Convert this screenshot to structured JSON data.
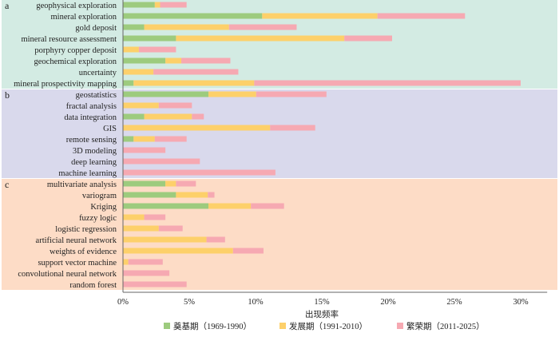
{
  "chart_data": {
    "type": "bar",
    "orientation": "horizontal-stacked",
    "xlabel": "出现频率",
    "xlim": [
      0,
      32
    ],
    "xticks": [
      "0%",
      "5%",
      "10%",
      "15%",
      "20%",
      "25%",
      "30%"
    ],
    "xtick_values": [
      0,
      5,
      10,
      15,
      20,
      25,
      30
    ],
    "legend_position": "bottom",
    "series": [
      {
        "name": "奠基期（1969-1990）",
        "color": "#9dcb7e"
      },
      {
        "name": "发展期（1991-2010）",
        "color": "#fdd06a"
      },
      {
        "name": "繁荣期（2011-2025）",
        "color": "#f6a9b2"
      }
    ],
    "groups": [
      {
        "label": "a",
        "color": "#d3ebe3",
        "rows": [
          {
            "term": "geophysical exploration",
            "values": [
              2.4,
              0.4,
              2.0
            ]
          },
          {
            "term": "mineral exploration",
            "values": [
              10.5,
              8.7,
              6.6
            ]
          },
          {
            "term": "gold deposit",
            "values": [
              1.6,
              6.4,
              5.1
            ]
          },
          {
            "term": "mineral resource assessment",
            "values": [
              4.0,
              12.7,
              3.6
            ]
          },
          {
            "term": "porphyry copper deposit",
            "values": [
              0,
              1.2,
              2.8
            ]
          },
          {
            "term": "geochemical exploration",
            "values": [
              3.2,
              1.2,
              3.7
            ]
          },
          {
            "term": "uncertainty",
            "values": [
              0,
              2.3,
              6.4
            ]
          },
          {
            "term": "mineral prospectivity mapping",
            "values": [
              0.8,
              9.1,
              20.1
            ]
          }
        ]
      },
      {
        "label": "b",
        "color": "#d9d9ec",
        "rows": [
          {
            "term": "geostatistics",
            "values": [
              6.45,
              3.6,
              5.3
            ]
          },
          {
            "term": "fractal analysis",
            "values": [
              0,
              2.7,
              2.5
            ]
          },
          {
            "term": "data integration",
            "values": [
              1.6,
              3.6,
              0.9
            ]
          },
          {
            "term": "GIS",
            "values": [
              0,
              11.1,
              3.4
            ]
          },
          {
            "term": "remote sensing",
            "values": [
              0.8,
              1.6,
              2.4
            ]
          },
          {
            "term": "3D modeling",
            "values": [
              0,
              0,
              3.2
            ]
          },
          {
            "term": "deep learning",
            "values": [
              0,
              0,
              5.8
            ]
          },
          {
            "term": "machine learning",
            "values": [
              0,
              0,
              11.5
            ]
          }
        ]
      },
      {
        "label": "c",
        "color": "#fddcc6",
        "rows": [
          {
            "term": "multivariate analysis",
            "values": [
              3.2,
              0.8,
              1.5
            ]
          },
          {
            "term": "variogram",
            "values": [
              4.0,
              2.4,
              0.5
            ]
          },
          {
            "term": "Kriging",
            "values": [
              6.45,
              3.2,
              2.5
            ]
          },
          {
            "term": "fuzzy logic",
            "values": [
              0,
              1.6,
              1.6
            ]
          },
          {
            "term": "logistic regression",
            "values": [
              0,
              2.7,
              1.8
            ]
          },
          {
            "term": "artificial neural network",
            "values": [
              0,
              6.3,
              1.4
            ]
          },
          {
            "term": "weights of evidence",
            "values": [
              0,
              8.3,
              2.3
            ]
          },
          {
            "term": "support vector machine",
            "values": [
              0,
              0.4,
              2.6
            ]
          },
          {
            "term": "convolutional neural network",
            "values": [
              0,
              0,
              3.5
            ]
          },
          {
            "term": "random forest",
            "values": [
              0,
              0,
              4.8
            ]
          }
        ]
      }
    ]
  }
}
